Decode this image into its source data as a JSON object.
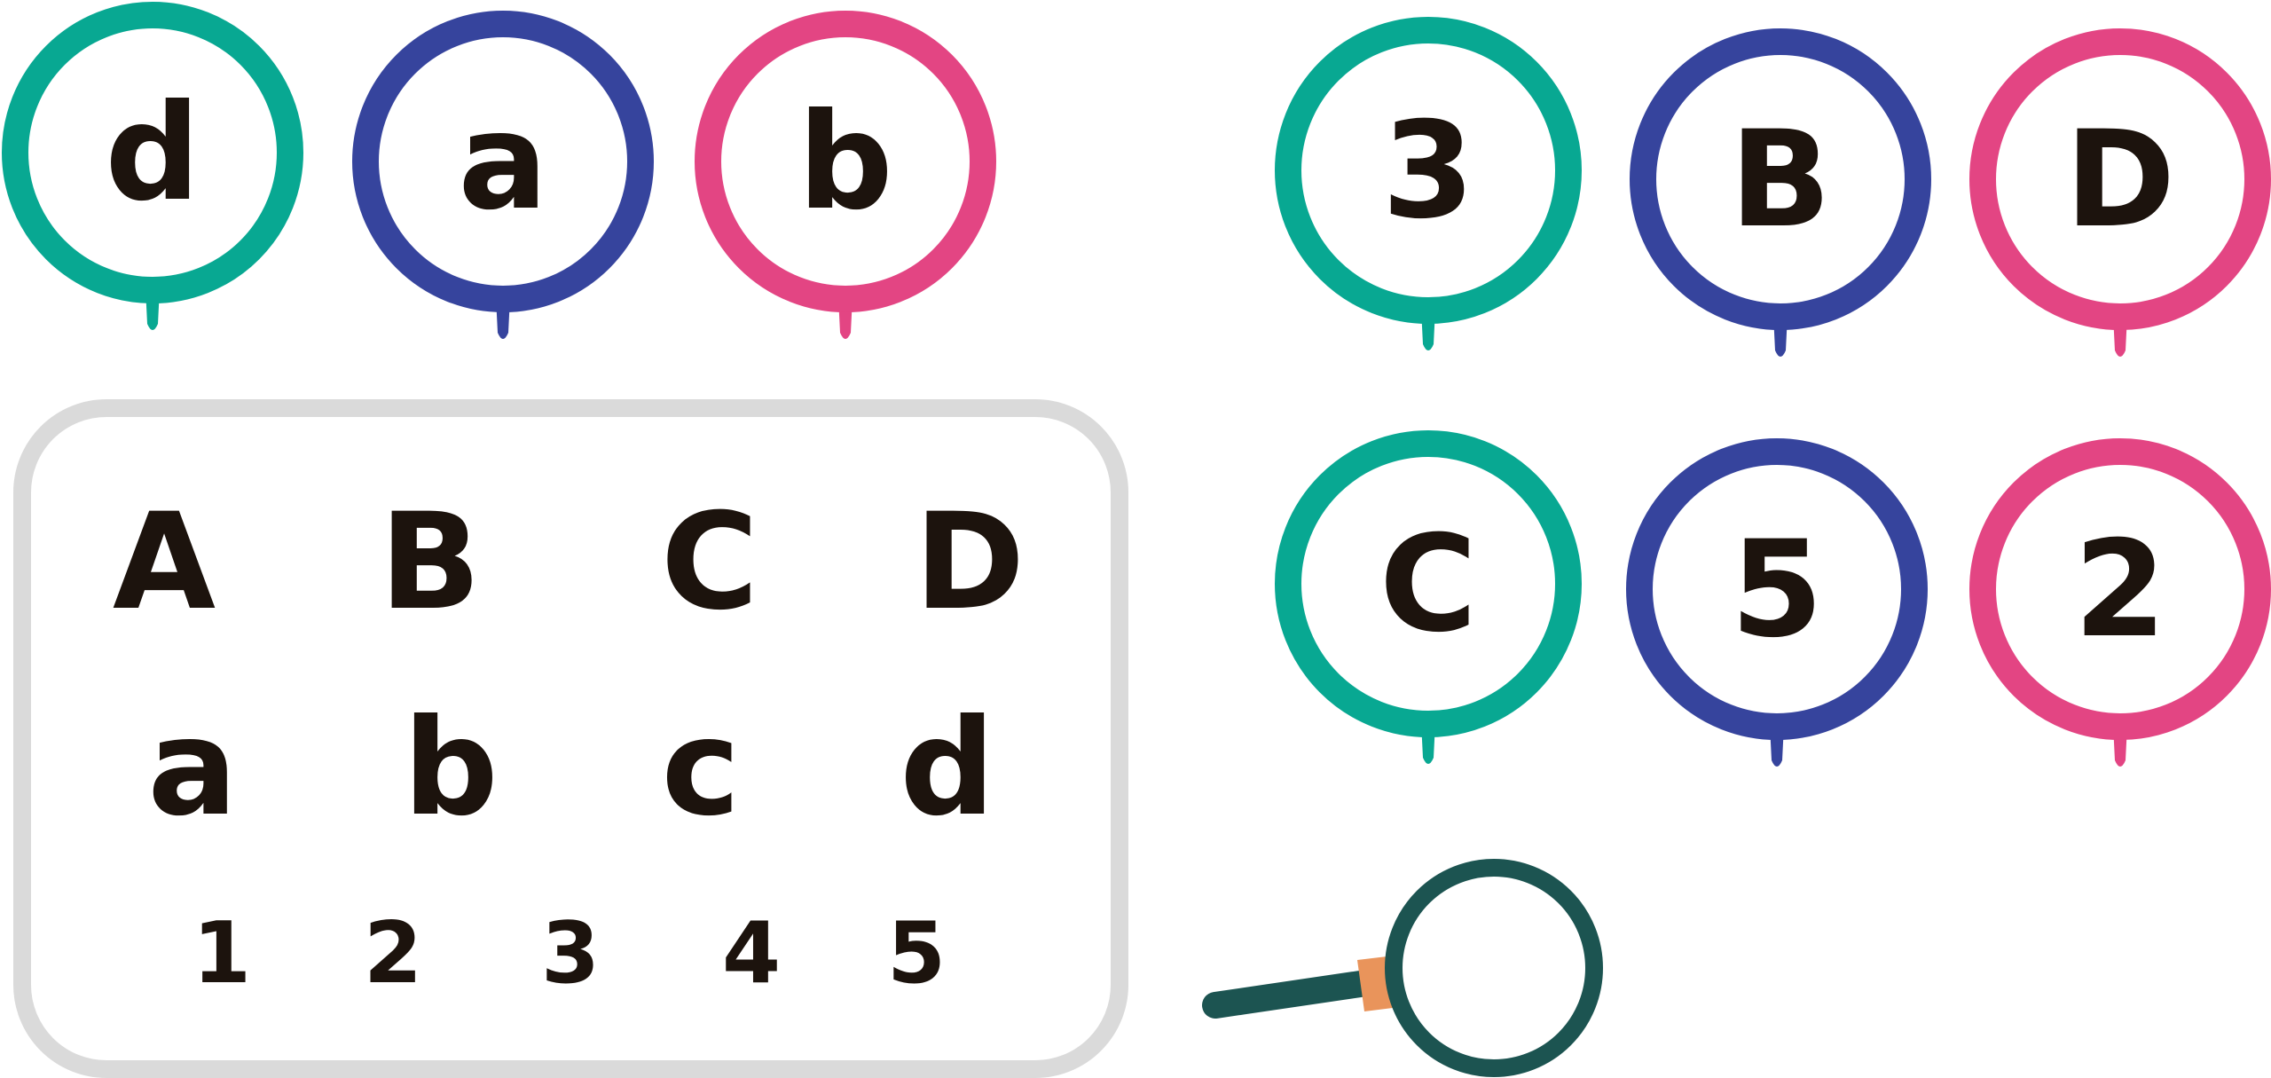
{
  "colors": {
    "teal": "#08a892",
    "blue": "#36449d",
    "pink": "#e34583",
    "ink": "#1c130d",
    "panel_border": "#dadada",
    "magnifier_rim": "#1c5451",
    "magnifier_handle": "#1c5451",
    "magnifier_collar": "#e9945b"
  },
  "lenses": [
    {
      "label": "d",
      "color": "teal",
      "icon": "magnifying-glass-icon"
    },
    {
      "label": "a",
      "color": "blue",
      "icon": "magnifying-glass-icon"
    },
    {
      "label": "b",
      "color": "pink",
      "icon": "magnifying-glass-icon"
    },
    {
      "label": "3",
      "color": "teal",
      "icon": "magnifying-glass-icon"
    },
    {
      "label": "B",
      "color": "blue",
      "icon": "magnifying-glass-icon"
    },
    {
      "label": "D",
      "color": "pink",
      "icon": "magnifying-glass-icon"
    },
    {
      "label": "C",
      "color": "teal",
      "icon": "magnifying-glass-icon"
    },
    {
      "label": "5",
      "color": "blue",
      "icon": "magnifying-glass-icon"
    },
    {
      "label": "2",
      "color": "pink",
      "icon": "magnifying-glass-icon"
    }
  ],
  "reference_sheet": {
    "uppercase": [
      "A",
      "B",
      "C",
      "D"
    ],
    "lowercase": [
      "a",
      "b",
      "c",
      "d"
    ],
    "digits": [
      "1",
      "2",
      "3",
      "4",
      "5"
    ]
  },
  "magnifier": {
    "icon": "magnifier-icon"
  }
}
